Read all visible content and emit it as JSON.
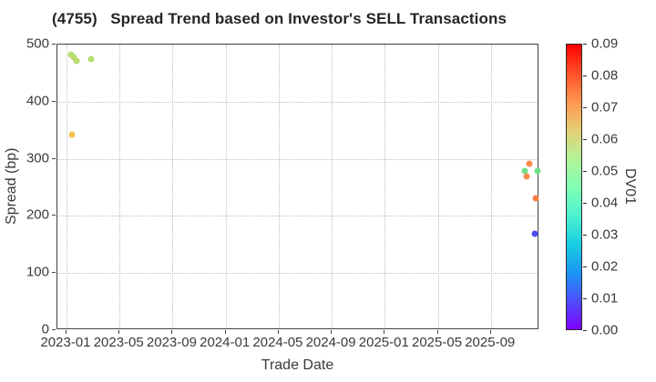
{
  "chart_data": {
    "type": "scatter",
    "title": "(4755)   Spread Trend based on Investor's SELL Transactions",
    "xlabel": "Trade Date",
    "ylabel": "Spread (bp)",
    "x_tick_labels": [
      "2023-01",
      "2023-05",
      "2023-09",
      "2024-01",
      "2024-05",
      "2024-09",
      "2025-01",
      "2025-05",
      "2025-09"
    ],
    "y_ticks": [
      0,
      100,
      200,
      300,
      400,
      500
    ],
    "ylim": [
      0,
      500
    ],
    "grid": true,
    "legend_position": "right-colorbar",
    "colorbar": {
      "label": "DV01",
      "min": 0.0,
      "max": 0.09,
      "ticks": [
        0.0,
        0.01,
        0.02,
        0.03,
        0.04,
        0.05,
        0.06,
        0.07,
        0.08,
        0.09
      ],
      "gradient_stops_bottom_to_top": [
        "#8000ff",
        "#4d4ffc",
        "#1a96f3",
        "#1acee3",
        "#4df3ce",
        "#80ffb4",
        "#b3f396",
        "#e6ce74",
        "#ff964f",
        "#ff4f28",
        "#ff0000"
      ]
    },
    "series": [
      {
        "name": "SELL transactions",
        "points": [
          {
            "trade_date": "2023-01-11",
            "spread_bp": 483,
            "dv01": 0.058,
            "color": "#b8dc6e"
          },
          {
            "trade_date": "2023-01-17",
            "spread_bp": 477,
            "dv01": 0.058,
            "color": "#b8dc6e"
          },
          {
            "trade_date": "2023-01-23",
            "spread_bp": 472,
            "dv01": 0.057,
            "color": "#b8dc6e"
          },
          {
            "trade_date": "2023-02-27",
            "spread_bp": 475,
            "dv01": 0.057,
            "color": "#b8dc6e"
          },
          {
            "trade_date": "2023-01-13",
            "spread_bp": 343,
            "dv01": 0.066,
            "color": "#f2c153"
          },
          {
            "trade_date": "2025-11-29",
            "spread_bp": 291,
            "dv01": 0.072,
            "color": "#fb8d4c"
          },
          {
            "trade_date": "2025-11-17",
            "spread_bp": 279,
            "dv01": 0.043,
            "color": "#6fe088"
          },
          {
            "trade_date": "2025-12-16",
            "spread_bp": 279,
            "dv01": 0.043,
            "color": "#6fe088"
          },
          {
            "trade_date": "2025-11-23",
            "spread_bp": 269,
            "dv01": 0.072,
            "color": "#fb8d4c"
          },
          {
            "trade_date": "2025-12-12",
            "spread_bp": 231,
            "dv01": 0.075,
            "color": "#fb7e43"
          },
          {
            "trade_date": "2025-12-10",
            "spread_bp": 169,
            "dv01": 0.01,
            "color": "#4b4bf2"
          }
        ]
      }
    ]
  }
}
